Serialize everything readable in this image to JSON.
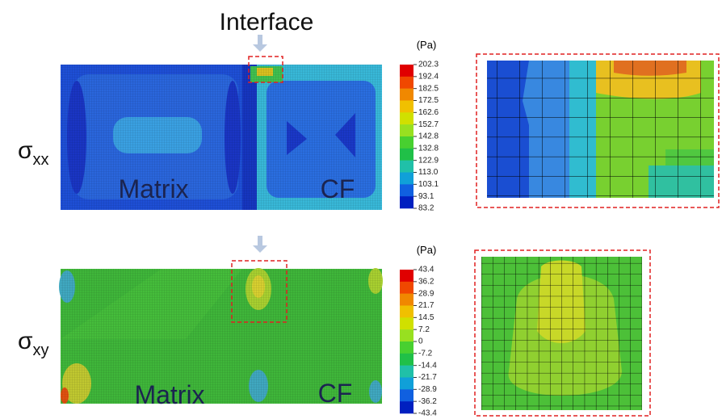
{
  "header": {
    "title": "Interface"
  },
  "panels": [
    {
      "symbol": "σ",
      "subscript": "xx",
      "regions": [
        "Matrix",
        "CF"
      ],
      "unit": "(Pa)",
      "scale": [
        "202.3",
        "192.4",
        "182.5",
        "172.5",
        "162.6",
        "152.7",
        "142.8",
        "132.8",
        "122.9",
        "113.0",
        "103.1",
        "93.1",
        "83.2"
      ]
    },
    {
      "symbol": "σ",
      "subscript": "xy",
      "regions": [
        "Matrix",
        "CF"
      ],
      "unit": "(Pa)",
      "scale": [
        "43.4",
        "36.2",
        "28.9",
        "21.7",
        "14.5",
        "7.2",
        "0",
        "-7.2",
        "-14.4",
        "-21.7",
        "-28.9",
        "-36.2",
        "-43.4"
      ]
    }
  ]
}
